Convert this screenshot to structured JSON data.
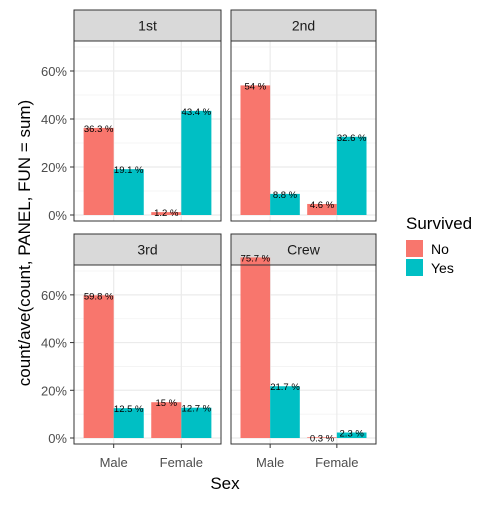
{
  "chart_data": {
    "type": "bar",
    "title": "",
    "xlabel": "Sex",
    "ylabel": "count/ave(count, PANEL, FUN = sum)",
    "ylim": [
      0,
      0.7
    ],
    "y_ticks": [
      "0%",
      "20%",
      "40%",
      "60%"
    ],
    "categories": [
      "Male",
      "Female"
    ],
    "legend": {
      "title": "Survived",
      "placement": "right",
      "entries": [
        {
          "name": "No",
          "color": "#F8766D"
        },
        {
          "name": "Yes",
          "color": "#00BFC4"
        }
      ]
    },
    "grid": true,
    "facets": [
      {
        "label": "1st",
        "series": [
          {
            "name": "No",
            "values": [
              0.363,
              0.012
            ],
            "labels": [
              "36.3 %",
              "1.2 %"
            ]
          },
          {
            "name": "Yes",
            "values": [
              0.191,
              0.434
            ],
            "labels": [
              "19.1 %",
              "43.4 %"
            ]
          }
        ]
      },
      {
        "label": "2nd",
        "series": [
          {
            "name": "No",
            "values": [
              0.54,
              0.046
            ],
            "labels": [
              "54 %",
              "4.6 %"
            ]
          },
          {
            "name": "Yes",
            "values": [
              0.088,
              0.326
            ],
            "labels": [
              "8.8 %",
              "32.6 %"
            ]
          }
        ]
      },
      {
        "label": "3rd",
        "series": [
          {
            "name": "No",
            "values": [
              0.598,
              0.15
            ],
            "labels": [
              "59.8 %",
              "15 %"
            ]
          },
          {
            "name": "Yes",
            "values": [
              0.125,
              0.127
            ],
            "labels": [
              "12.5 %",
              "12.7 %"
            ]
          }
        ]
      },
      {
        "label": "Crew",
        "series": [
          {
            "name": "No",
            "values": [
              0.757,
              0.003
            ],
            "labels": [
              "75.7 %",
              "0.3 %"
            ]
          },
          {
            "name": "Yes",
            "values": [
              0.217,
              0.023
            ],
            "labels": [
              "21.7 %",
              "2.3 %"
            ]
          }
        ]
      }
    ]
  }
}
